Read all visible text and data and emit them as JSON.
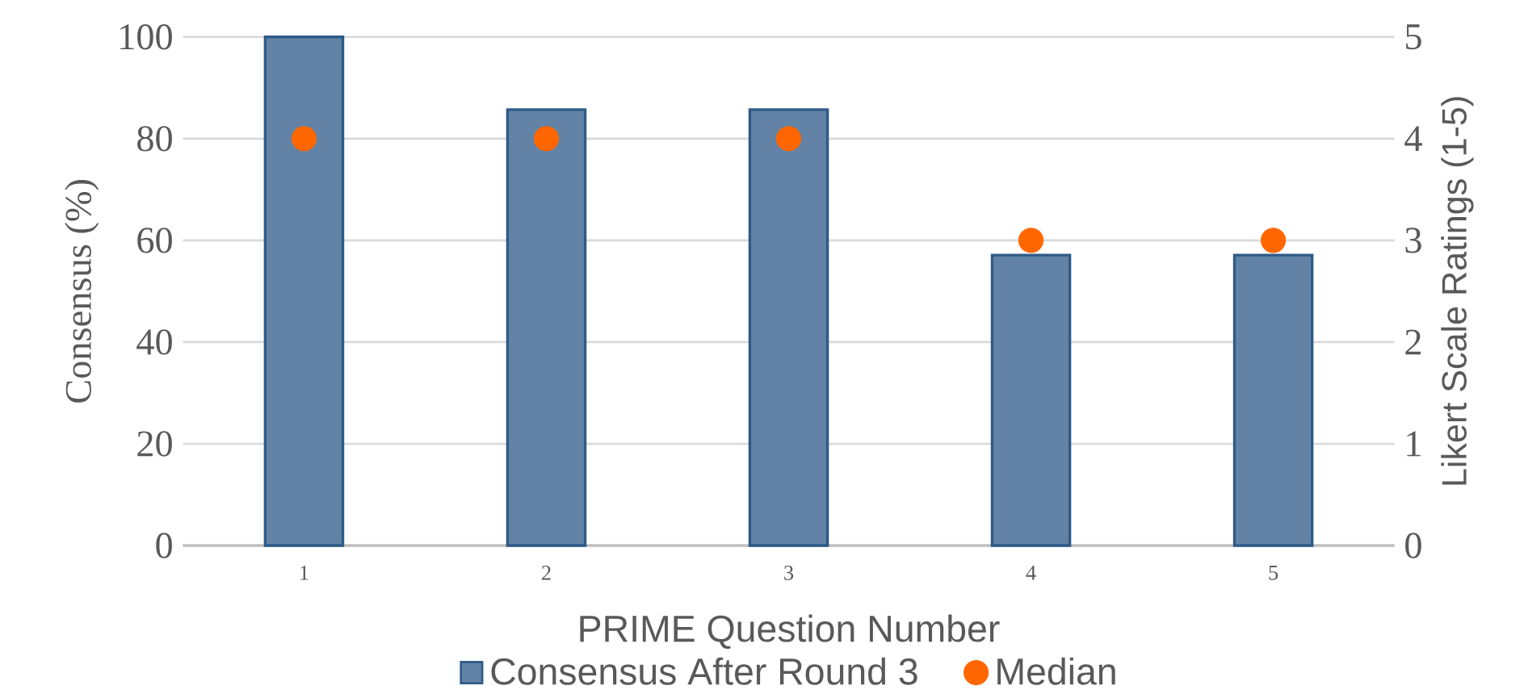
{
  "chart_data": {
    "type": "bar",
    "xlabel": "PRIME Question Number",
    "ylabel": "Consensus (%)",
    "y2label": "Likert Scale Ratings (1-5)",
    "categories": [
      "1",
      "2",
      "3",
      "4",
      "5"
    ],
    "series": [
      {
        "name": "Consensus After Round 3",
        "color": "#2e5a87",
        "values": [
          100,
          85.7,
          85.7,
          57.1,
          57.1
        ]
      },
      {
        "name": "Median",
        "type": "scatter",
        "axis": "y2",
        "color": "#ff6600",
        "marker": "circle",
        "values": [
          4,
          4,
          4,
          3,
          3
        ]
      }
    ],
    "ylim": [
      0,
      100
    ],
    "yticks": [
      0,
      20,
      40,
      60,
      80,
      100
    ],
    "y2lim": [
      0,
      5
    ],
    "y2ticks": [
      0,
      1,
      2,
      3,
      4,
      5
    ],
    "grid": "y",
    "legend": "bottom"
  }
}
